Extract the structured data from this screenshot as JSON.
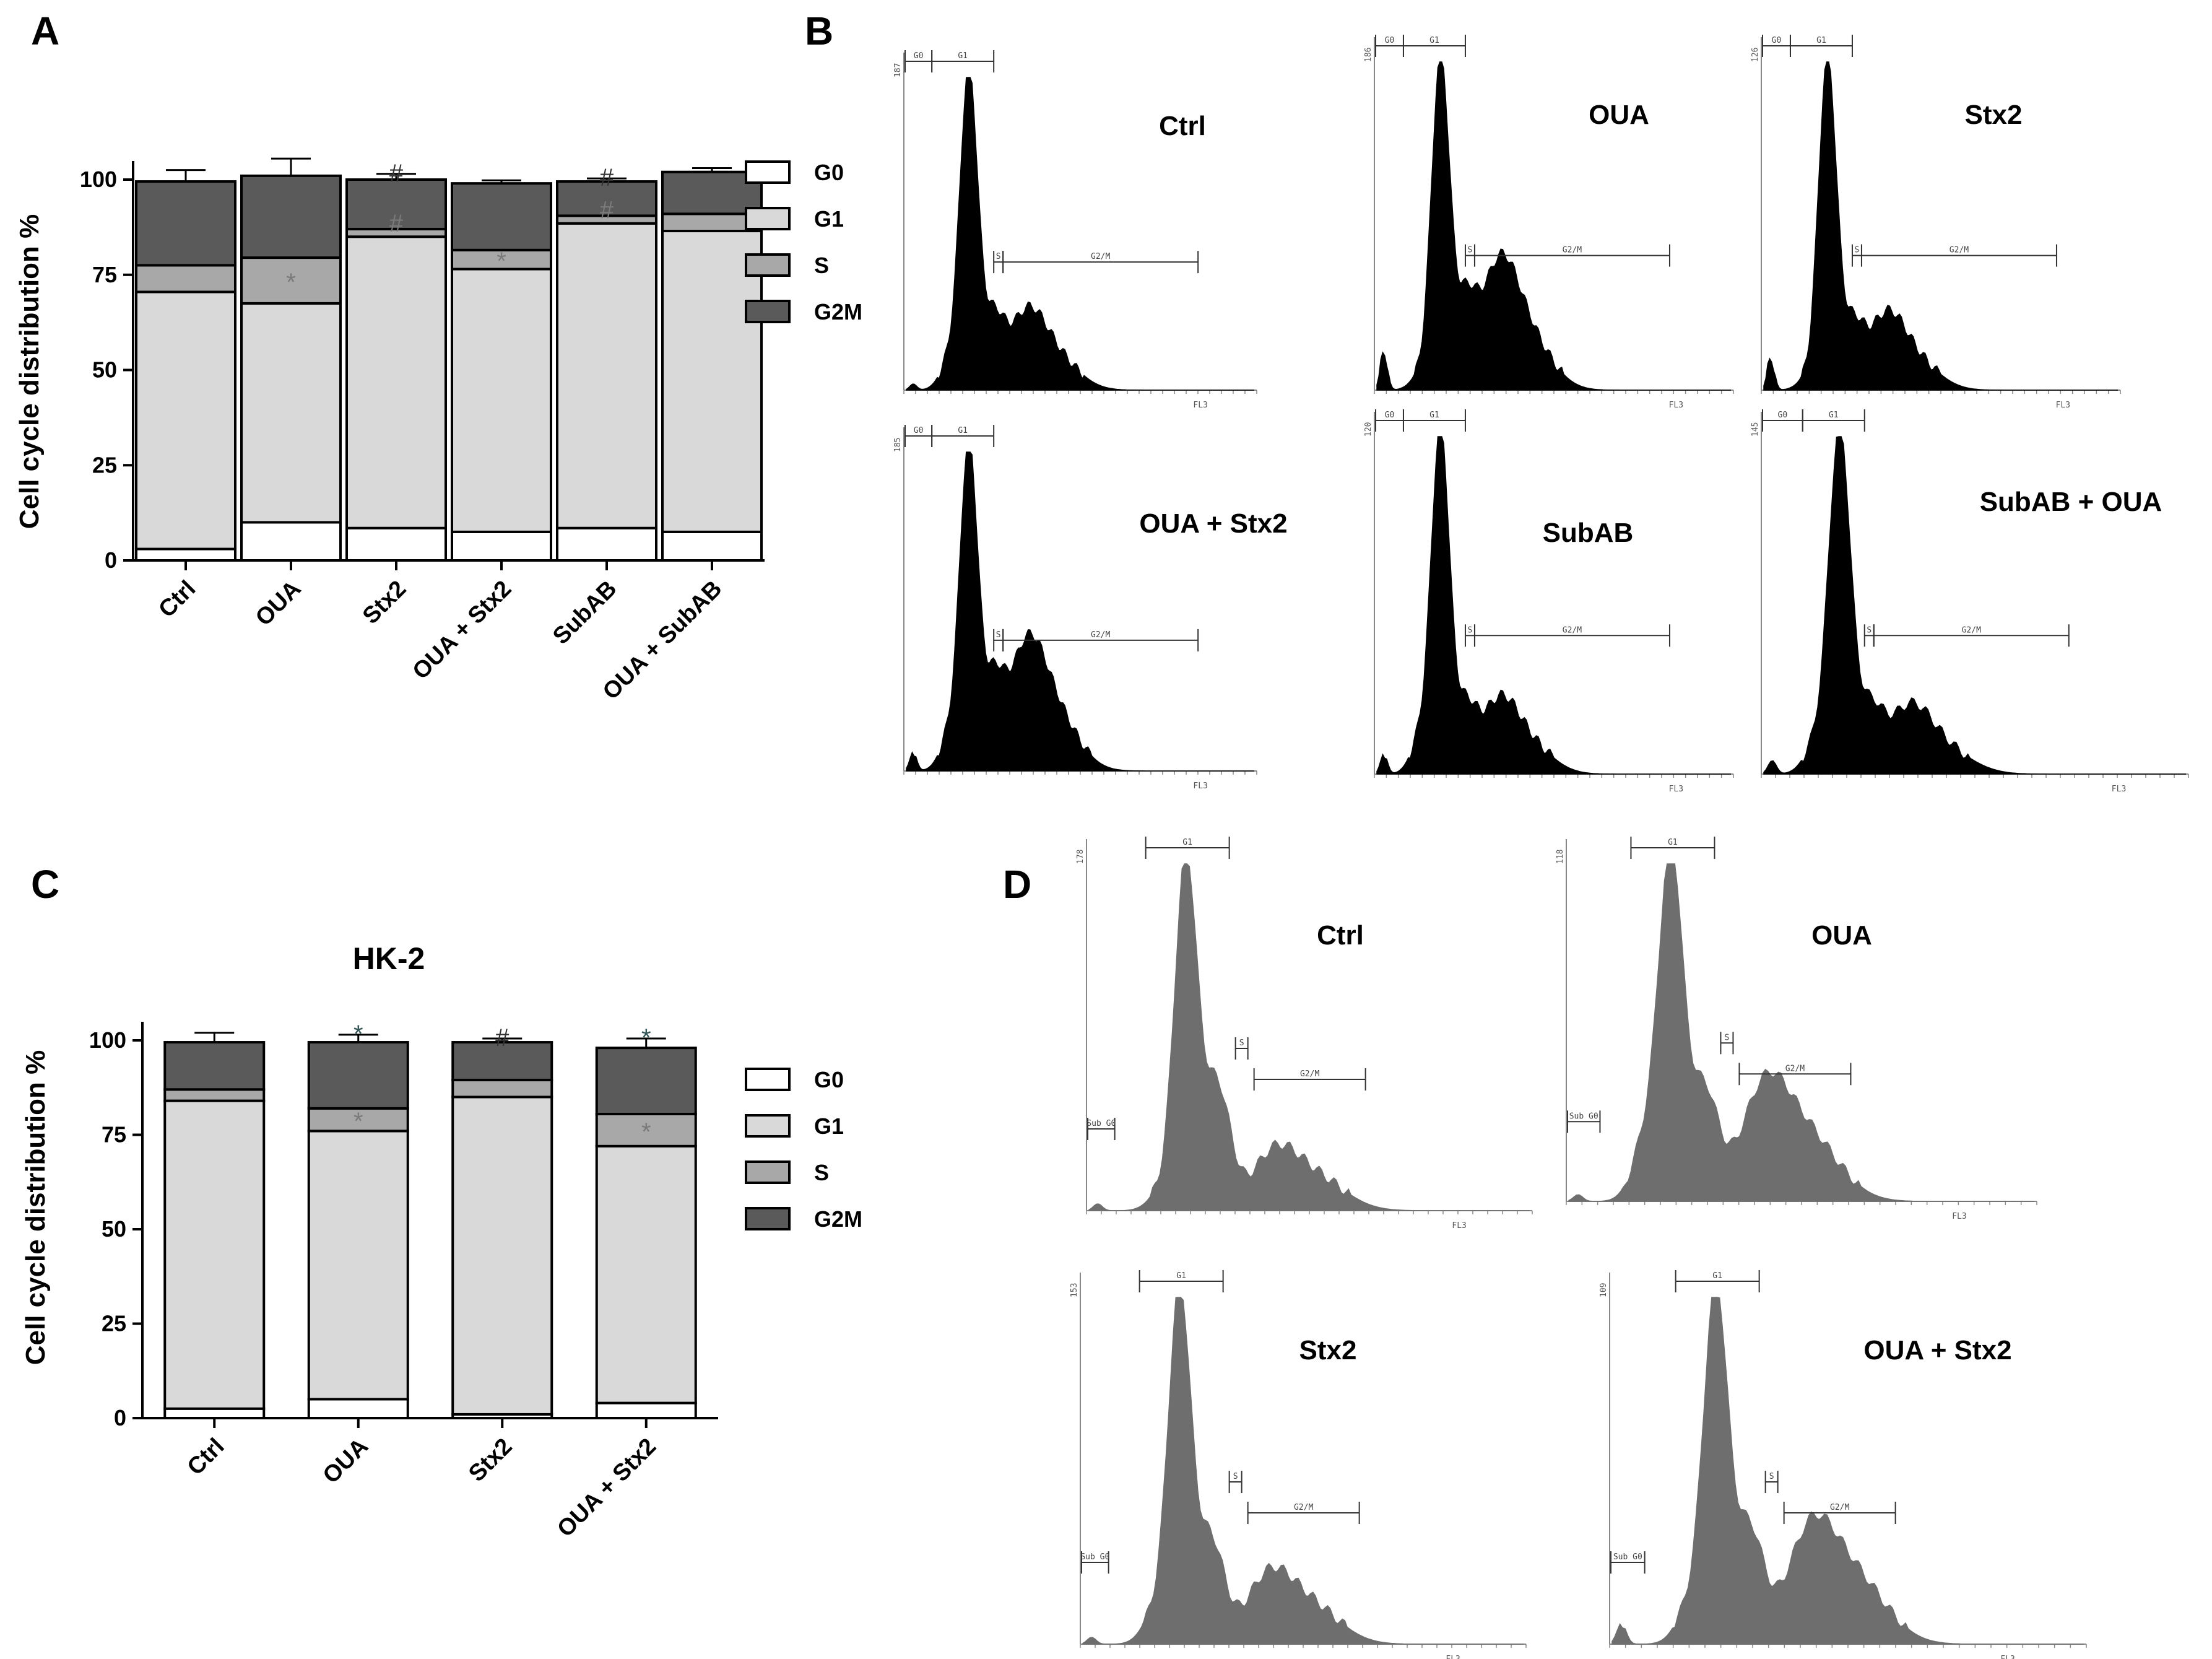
{
  "panels": {
    "A": "A",
    "B": "B",
    "C": "C",
    "D": "D"
  },
  "colors": {
    "G0": "#ffffff",
    "G1": "#d9d9d9",
    "S": "#a8a8a8",
    "G2M": "#5a5a5a",
    "histB": "#000000",
    "histD": "#6e6e6e",
    "sig": "#7a7a7a"
  },
  "chart_data": [
    {
      "id": "A",
      "type": "bar",
      "stacked": true,
      "title": "",
      "xlabel": "",
      "ylabel": "Cell cycle distribution %",
      "ylim": [
        0,
        100
      ],
      "yticks": [
        0,
        25,
        50,
        75,
        100
      ],
      "categories": [
        "Ctrl",
        "OUA",
        "Stx2",
        "OUA + Stx2",
        "SubAB",
        "OUA + SubAB"
      ],
      "legend": [
        "G0",
        "G1",
        "S",
        "G2M"
      ],
      "series": [
        {
          "name": "G0",
          "values": [
            3,
            10,
            8.5,
            7.5,
            8.5,
            7.5
          ],
          "errors": [
            0.8,
            1.5,
            0.8,
            0.8,
            0.8,
            0.8
          ]
        },
        {
          "name": "G1",
          "values": [
            67.5,
            57.5,
            76.5,
            69,
            80,
            79
          ],
          "errors": [
            3.5,
            3,
            1,
            2.5,
            1.5,
            4
          ]
        },
        {
          "name": "S",
          "values": [
            7,
            12,
            2,
            5,
            2,
            4.5
          ],
          "errors": [
            2,
            1,
            1,
            1.5,
            4,
            2
          ]
        },
        {
          "name": "G2M",
          "values": [
            22,
            21.5,
            13,
            17.5,
            9,
            11
          ],
          "errors": [
            3,
            4.5,
            1.5,
            0.8,
            0.8,
            1
          ]
        }
      ],
      "annotations": [
        {
          "category": "OUA",
          "segment": "S",
          "mark": "*"
        },
        {
          "category": "OUA + Stx2",
          "segment": "S",
          "mark": "*"
        },
        {
          "category": "Stx2",
          "segment": "S",
          "mark": "#"
        },
        {
          "category": "Stx2",
          "segment": "top",
          "mark": "#"
        },
        {
          "category": "SubAB",
          "segment": "S",
          "mark": "#"
        },
        {
          "category": "SubAB",
          "segment": "top",
          "mark": "#"
        }
      ]
    },
    {
      "id": "C",
      "type": "bar",
      "stacked": true,
      "title": "HK-2",
      "xlabel": "",
      "ylabel": "Cell cycle distribution %",
      "ylim": [
        0,
        100
      ],
      "yticks": [
        0,
        25,
        50,
        75,
        100
      ],
      "categories": [
        "Ctrl",
        "OUA",
        "Stx2",
        "OUA + Stx2"
      ],
      "legend": [
        "G0",
        "G1",
        "S",
        "G2M"
      ],
      "series": [
        {
          "name": "G0",
          "values": [
            2.5,
            5,
            1,
            4
          ],
          "errors": [
            0.8,
            1,
            0.3,
            1.5
          ]
        },
        {
          "name": "G1",
          "values": [
            81.5,
            71,
            84,
            68
          ],
          "errors": [
            1.5,
            1.5,
            2,
            4.5
          ]
        },
        {
          "name": "S",
          "values": [
            3,
            6,
            4.5,
            8.5
          ],
          "errors": [
            1.5,
            1,
            1.5,
            3
          ]
        },
        {
          "name": "G2M",
          "values": [
            12.5,
            17.5,
            10,
            17.5
          ],
          "errors": [
            2.5,
            2,
            1,
            2.5
          ]
        }
      ],
      "annotations": [
        {
          "category": "OUA",
          "segment": "S",
          "mark": "*"
        },
        {
          "category": "OUA",
          "segment": "top",
          "mark": "*"
        },
        {
          "category": "OUA + Stx2",
          "segment": "S",
          "mark": "*"
        },
        {
          "category": "OUA + Stx2",
          "segment": "top",
          "mark": "*"
        },
        {
          "category": "Stx2",
          "segment": "top",
          "mark": "#"
        }
      ]
    }
  ],
  "histogramsB": [
    {
      "label": "Ctrl",
      "ymax": "187",
      "xaxis": "FL3",
      "gates": [
        "G0",
        "G1",
        "S",
        "G2/M"
      ],
      "shape": [
        0.0,
        0.02,
        0.1,
        1.0,
        0.35,
        0.22,
        0.19,
        0.12,
        0.05,
        0.01
      ]
    },
    {
      "label": "OUA",
      "ymax": "186",
      "xaxis": "FL3",
      "gates": [
        "G0",
        "G1",
        "S",
        "G2/M"
      ],
      "shape": [
        0.0,
        0.12,
        0.05,
        1.0,
        0.4,
        0.32,
        0.3,
        0.18,
        0.05,
        0.01
      ]
    },
    {
      "label": "Stx2",
      "ymax": "126",
      "xaxis": "FL3",
      "gates": [
        "G0",
        "G1",
        "S",
        "G2/M"
      ],
      "shape": [
        0.0,
        0.1,
        0.04,
        1.0,
        0.3,
        0.2,
        0.18,
        0.1,
        0.03,
        0.01
      ]
    },
    {
      "label": "OUA + Stx2",
      "ymax": "185",
      "xaxis": "FL3",
      "gates": [
        "G0",
        "G1",
        "S",
        "G2/M"
      ],
      "shape": [
        0.0,
        0.06,
        0.12,
        1.0,
        0.42,
        0.3,
        0.3,
        0.2,
        0.05,
        0.01
      ]
    },
    {
      "label": "SubAB",
      "ymax": "120",
      "xaxis": "FL3",
      "gates": [
        "G0",
        "G1",
        "S",
        "G2/M"
      ],
      "shape": [
        0.0,
        0.06,
        0.12,
        1.0,
        0.3,
        0.2,
        0.17,
        0.1,
        0.03,
        0.01
      ]
    },
    {
      "label": "SubAB + OUA",
      "ymax": "145",
      "xaxis": "FL3",
      "gates": [
        "G0",
        "G1",
        "S",
        "G2/M"
      ],
      "shape": [
        0.0,
        0.04,
        0.1,
        1.0,
        0.3,
        0.22,
        0.16,
        0.08,
        0.03,
        0.01
      ]
    }
  ],
  "histogramsD": [
    {
      "label": "Ctrl",
      "ymax": "178",
      "xaxis": "FL3",
      "gates": [
        "Sub G0",
        "G1",
        "S",
        "G2/M"
      ],
      "shape": [
        0.0,
        0.02,
        0.06,
        1.0,
        0.6,
        0.22,
        0.14,
        0.1,
        0.04,
        0.01
      ]
    },
    {
      "label": "OUA",
      "ymax": "118",
      "xaxis": "FL3",
      "gates": [
        "Sub G0",
        "G1",
        "S",
        "G2/M"
      ],
      "shape": [
        0.0,
        0.02,
        0.2,
        1.0,
        0.55,
        0.3,
        0.28,
        0.2,
        0.06,
        0.01
      ]
    },
    {
      "label": "Stx2",
      "ymax": "153",
      "xaxis": "FL3",
      "gates": [
        "Sub G0",
        "G1",
        "S",
        "G2/M"
      ],
      "shape": [
        0.0,
        0.02,
        0.1,
        1.0,
        0.5,
        0.2,
        0.16,
        0.12,
        0.04,
        0.01
      ]
    },
    {
      "label": "OUA + Stx2",
      "ymax": "109",
      "xaxis": "FL3",
      "gates": [
        "Sub G0",
        "G1",
        "S",
        "G2/M"
      ],
      "shape": [
        0.0,
        0.06,
        0.12,
        1.0,
        0.55,
        0.28,
        0.27,
        0.2,
        0.06,
        0.01
      ]
    }
  ]
}
